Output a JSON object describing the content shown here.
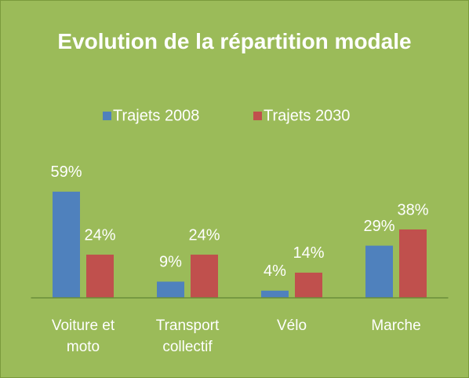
{
  "chart_data": {
    "type": "bar",
    "title": "Evolution de la répartition modale",
    "categories": [
      "Voiture et moto",
      "Transport collectif",
      "Vélo",
      "Marche"
    ],
    "series": [
      {
        "name": "Trajets 2008",
        "color": "#4f81bd",
        "values": [
          59,
          9,
          4,
          29
        ],
        "value_labels": [
          "59%",
          "9%",
          "4%",
          "29%"
        ]
      },
      {
        "name": "Trajets 2030",
        "color": "#c0504d",
        "values": [
          24,
          24,
          14,
          38
        ],
        "value_labels": [
          "24%",
          "24%",
          "14%",
          "38%"
        ]
      }
    ],
    "legend": "top"
  }
}
